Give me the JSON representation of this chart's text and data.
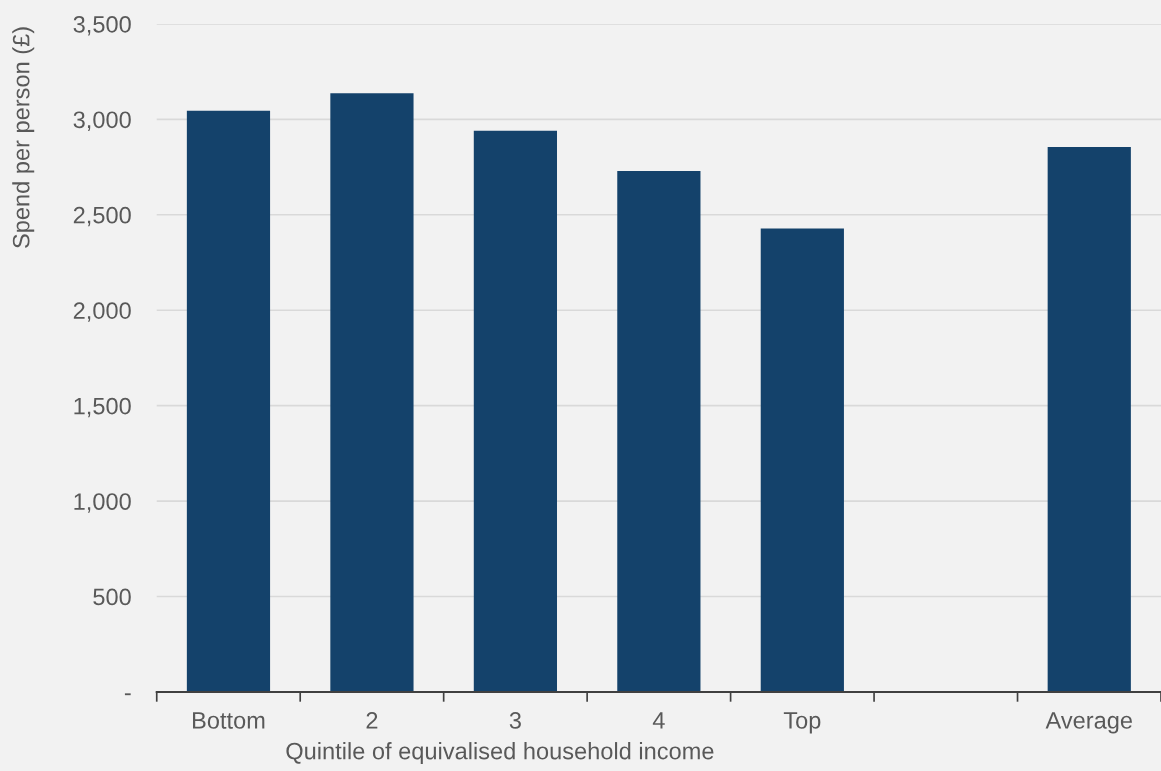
{
  "chart_data": {
    "type": "bar",
    "xlabel": "Quintile of equivalised household income",
    "ylabel": "Spend per person (£)",
    "categories": [
      "Bottom",
      "2",
      "3",
      "4",
      "Top",
      null,
      "Average"
    ],
    "values": [
      3045,
      3137,
      2940,
      2729,
      2428,
      null,
      2855
    ],
    "color": "#14426b",
    "ylim": [
      0,
      3500
    ],
    "yticks": [
      {
        "value": 0,
        "label": "-"
      },
      {
        "value": 500,
        "label": "500"
      },
      {
        "value": 1000,
        "label": "1,000"
      },
      {
        "value": 1500,
        "label": "1,500"
      },
      {
        "value": 2000,
        "label": "2,000"
      },
      {
        "value": 2500,
        "label": "2,500"
      },
      {
        "value": 3000,
        "label": "3,000"
      },
      {
        "value": 3500,
        "label": "3,500"
      }
    ],
    "grid": "y"
  }
}
